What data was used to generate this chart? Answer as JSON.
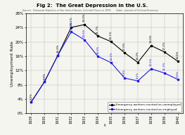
{
  "title": "Fig 2:  The Great Depression in the U.S.",
  "subtitle_left": "Source:  Historical Statistics of the United States, Colonial Times to 1970",
  "subtitle_right": "  Data:  Journal of Political Economy",
  "xlabel": "t",
  "ylabel": "Unemployment Rate",
  "years": [
    1929,
    1930,
    1931,
    1932,
    1933,
    1934,
    1935,
    1936,
    1937,
    1938,
    1939,
    1940
  ],
  "unemployed_series": [
    3.2,
    8.9,
    16.3,
    24.1,
    24.9,
    21.7,
    20.1,
    17.0,
    14.3,
    19.0,
    17.2,
    14.6
  ],
  "employed_series": [
    3.2,
    8.9,
    16.3,
    22.9,
    20.6,
    16.0,
    14.2,
    9.9,
    9.1,
    12.5,
    11.3,
    9.5
  ],
  "unemployed_labels": [
    "3.2%",
    "8.9%",
    "16.3%",
    "24.1%",
    "24.9%",
    "21.7%",
    "20.1%",
    "17.0%",
    "14.3%",
    "19.0%",
    "17.2%",
    "14.6%"
  ],
  "employed_labels": [
    "",
    "",
    "",
    "22.9%",
    "20.6%",
    "16.0%",
    "14.2%",
    "9.9%",
    "9.1%",
    "12.5%",
    "11.3%",
    "9.5%"
  ],
  "line1_color": "#000000",
  "line2_color": "#1a1aff",
  "bg_color": "#f5f5f0",
  "grid_color": "#bbbbbb",
  "ylim": [
    0,
    28
  ],
  "yticks": [
    0,
    4,
    8,
    12,
    16,
    20,
    24,
    28
  ]
}
